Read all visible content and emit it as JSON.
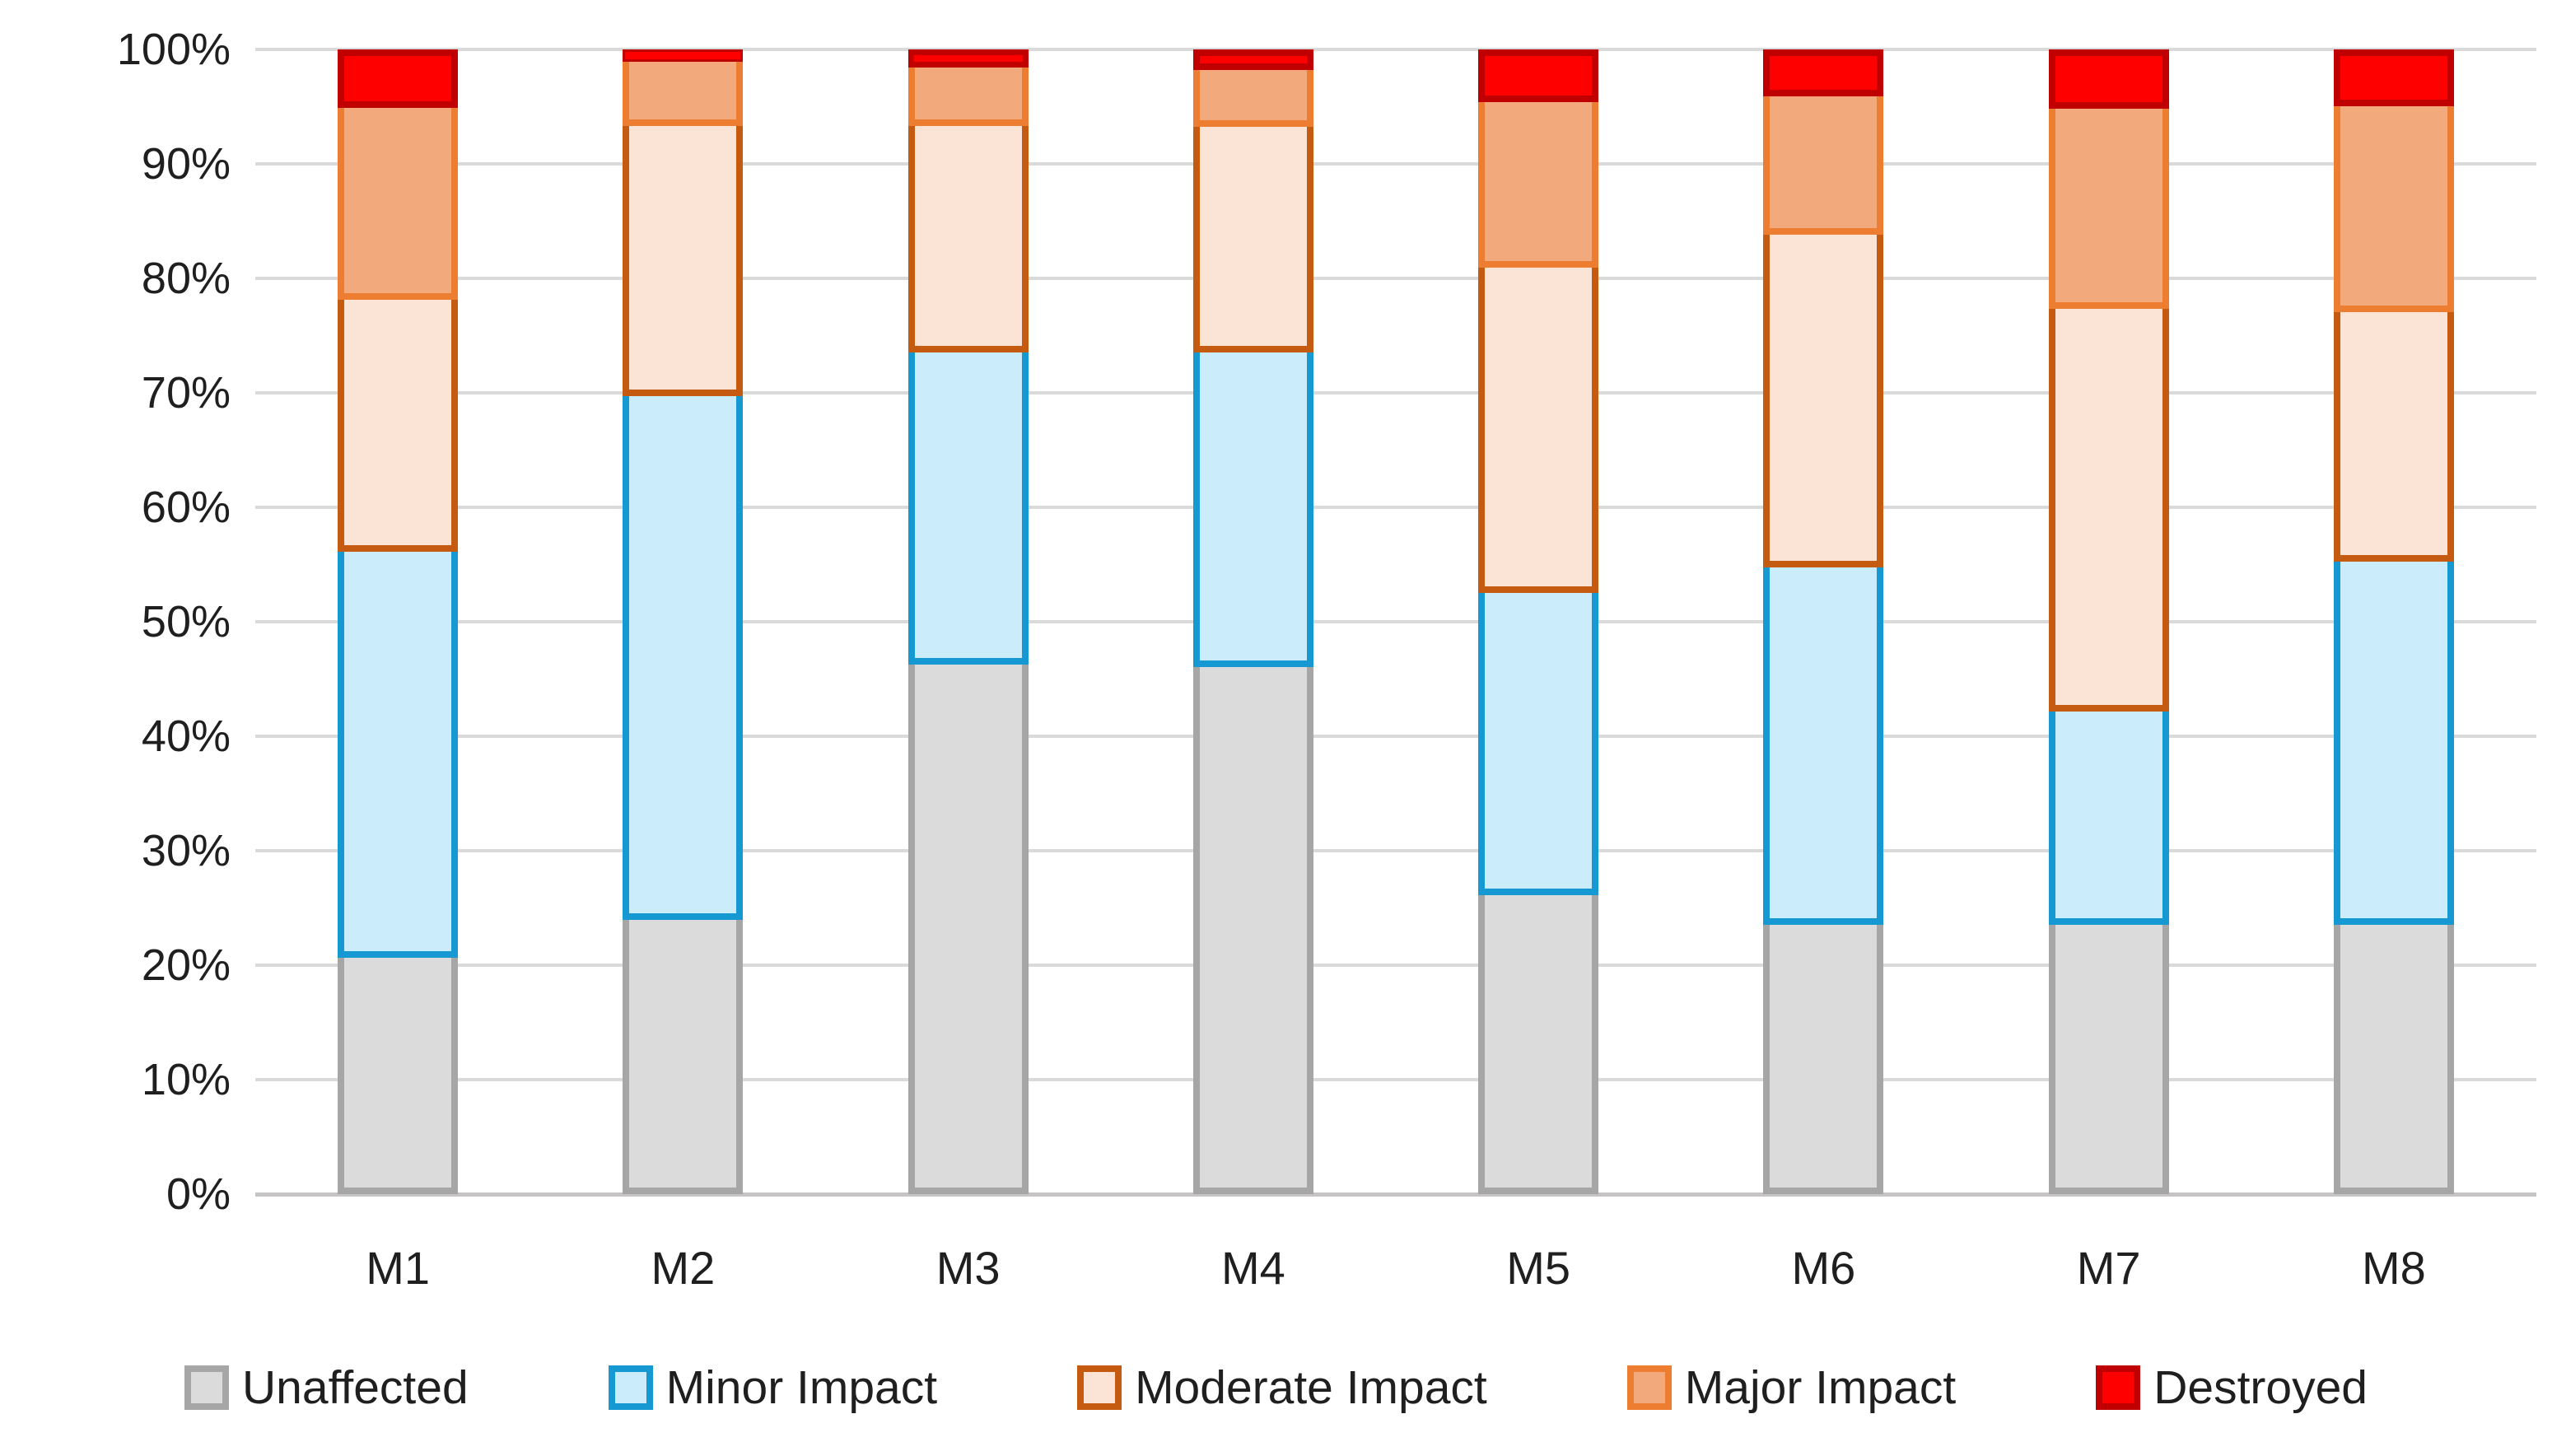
{
  "chart_data": {
    "type": "bar",
    "stacked": true,
    "percent_stacked": true,
    "title": "",
    "xlabel": "",
    "ylabel": "",
    "categories": [
      "M1",
      "M2",
      "M3",
      "M4",
      "M5",
      "M6",
      "M7",
      "M8"
    ],
    "series": [
      {
        "name": "Unaffected",
        "fill": "#DBDBDB",
        "border": "#A6A6A6",
        "values": [
          21.2,
          24.5,
          46.8,
          46.6,
          26.7,
          24.1,
          24.1,
          24.1
        ]
      },
      {
        "name": "Minor Impact",
        "fill": "#CBECFA",
        "border": "#1699D2",
        "values": [
          35.5,
          45.8,
          27.3,
          27.5,
          26.4,
          31.2,
          18.6,
          31.7
        ]
      },
      {
        "name": "Moderate Impact",
        "fill": "#FBE3D6",
        "border": "#C55A11",
        "values": [
          22.0,
          23.6,
          19.8,
          19.7,
          28.4,
          29.1,
          35.2,
          21.8
        ]
      },
      {
        "name": "Major Impact",
        "fill": "#F2A97B",
        "border": "#ED7D31",
        "values": [
          16.8,
          5.6,
          5.1,
          5.0,
          14.5,
          12.1,
          17.5,
          18.0
        ]
      },
      {
        "name": "Destroyed",
        "fill": "#FE0000",
        "border": "#C00000",
        "values": [
          4.5,
          0.5,
          1.0,
          1.2,
          4.0,
          3.5,
          4.6,
          4.4
        ]
      }
    ],
    "y_ticks": [
      "0%",
      "10%",
      "20%",
      "30%",
      "40%",
      "50%",
      "60%",
      "70%",
      "80%",
      "90%",
      "100%"
    ],
    "ylim": [
      0,
      100
    ],
    "grid": true,
    "gridline_color": "#DADADA",
    "axis_line_color": "#C6C4C4",
    "text_color": "#1f1f1f",
    "legend_position": "bottom"
  }
}
